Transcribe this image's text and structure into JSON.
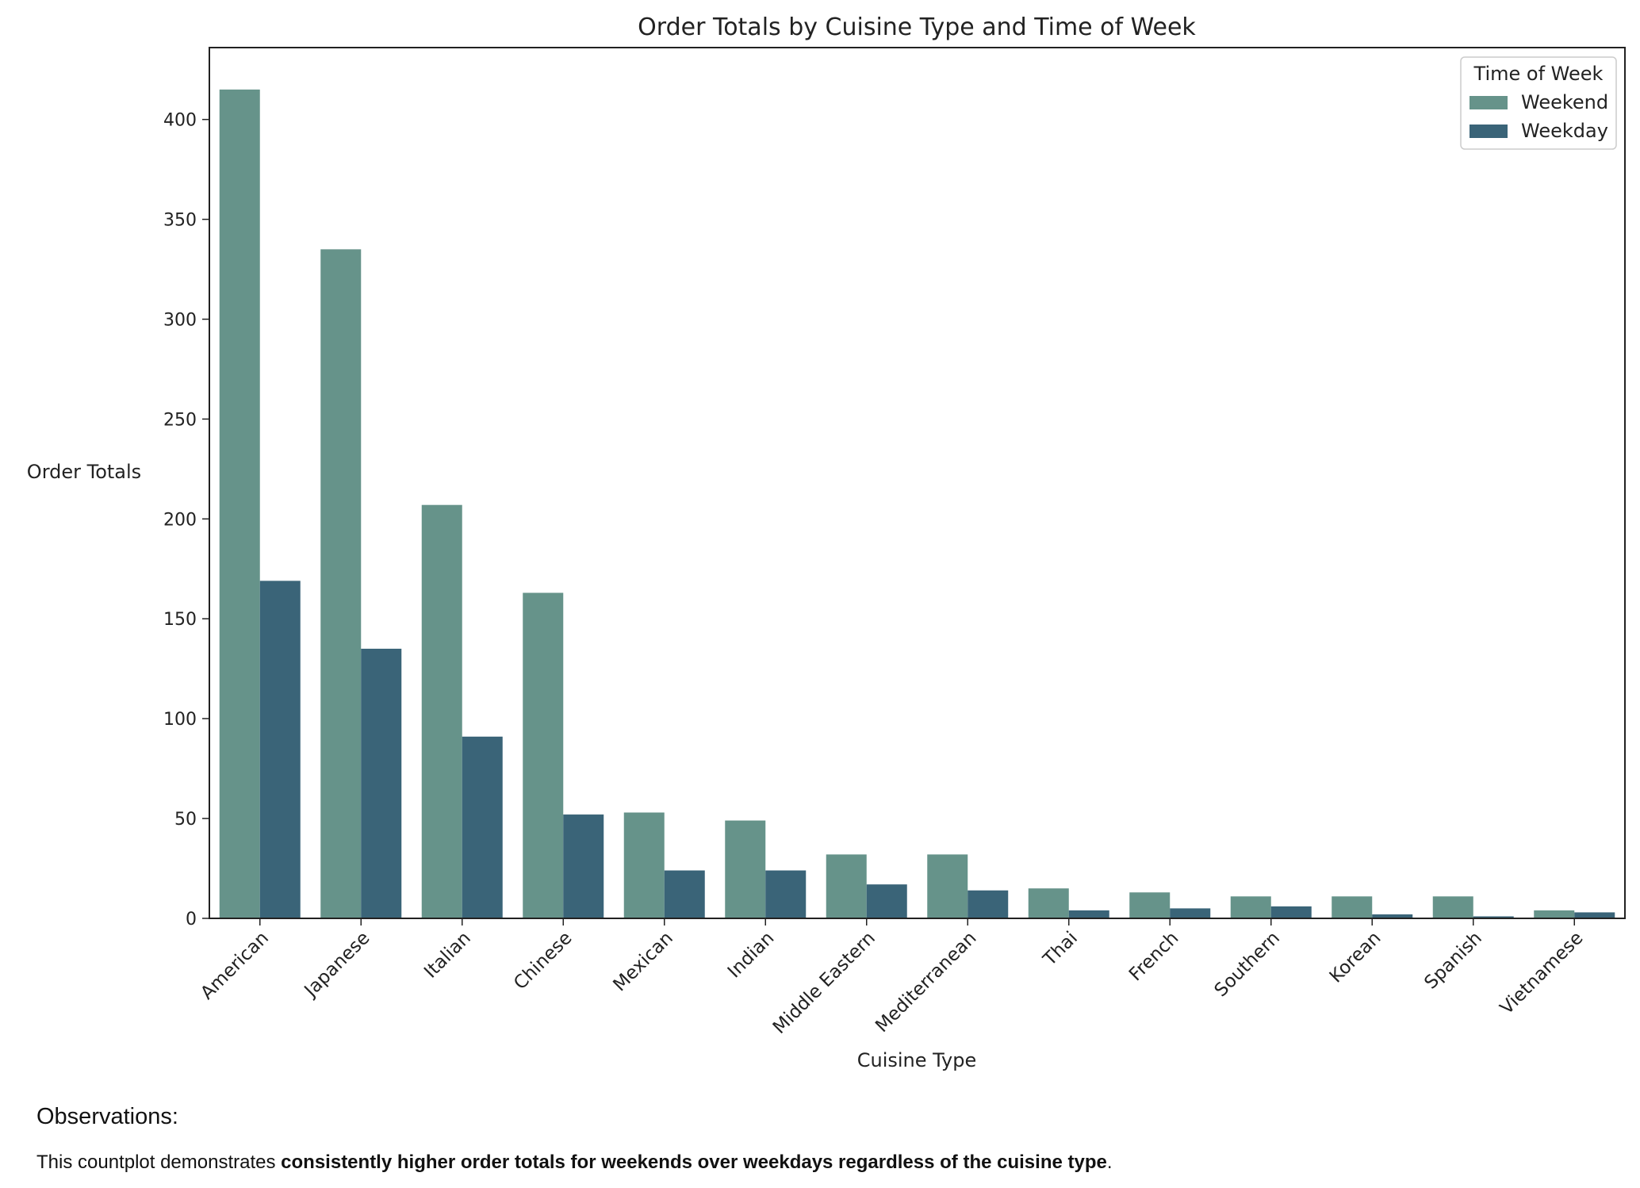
{
  "chart_data": {
    "type": "bar",
    "title": "Order Totals by Cuisine Type and Time of Week",
    "xlabel": "Cuisine Type",
    "ylabel": "Order Totals",
    "ylim": [
      0,
      436
    ],
    "yticks": [
      0,
      50,
      100,
      150,
      200,
      250,
      300,
      350,
      400
    ],
    "grid": false,
    "legend": {
      "title": "Time of Week",
      "placement": "top-right"
    },
    "categories": [
      "American",
      "Japanese",
      "Italian",
      "Chinese",
      "Mexican",
      "Indian",
      "Middle Eastern",
      "Mediterranean",
      "Thai",
      "French",
      "Southern",
      "Korean",
      "Spanish",
      "Vietnamese"
    ],
    "series": [
      {
        "name": "Weekend",
        "color": "#66938a",
        "values": [
          415,
          335,
          207,
          163,
          53,
          49,
          32,
          32,
          15,
          13,
          11,
          11,
          11,
          4
        ]
      },
      {
        "name": "Weekday",
        "color": "#3a6478",
        "values": [
          169,
          135,
          91,
          52,
          24,
          24,
          17,
          14,
          4,
          5,
          6,
          2,
          1,
          3
        ]
      }
    ]
  },
  "observations": {
    "heading": "Observations:",
    "text_prefix": "This countplot demonstrates ",
    "text_bold": "consistently higher order totals for weekends over weekdays regardless of the cuisine type",
    "text_suffix": "."
  }
}
